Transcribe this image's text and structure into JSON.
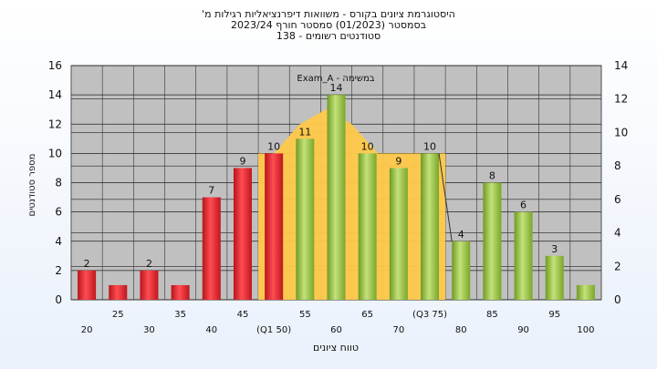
{
  "chart_data": {
    "type": "bar",
    "title_lines": [
      "היסטוגרמת ציונים בקורס - משוואות דיפרנציאליות רגילות מ'",
      "בסמסטר  (01/2023)  סמסטר חורף  2023/24",
      "סטודנטים רשומים - 138"
    ],
    "ylabel": "מספר סטודנטים",
    "xlabel": "טווח ציונים",
    "series_label": "Exam_A - במשימה",
    "categories": [
      "20",
      "25",
      "30",
      "35",
      "40",
      "45",
      "(Q1 50)",
      "55",
      "60",
      "65",
      "70",
      "(Q3 75)",
      "80",
      "85",
      "90",
      "95",
      "100"
    ],
    "values": [
      2,
      1,
      2,
      1,
      7,
      9,
      10,
      11,
      14,
      10,
      9,
      10,
      4,
      8,
      6,
      3,
      1
    ],
    "bar_color_groups": [
      "red",
      "red",
      "red",
      "red",
      "red",
      "red",
      "red",
      "green",
      "green",
      "green",
      "green",
      "green",
      "green",
      "green",
      "green",
      "green",
      "green"
    ],
    "data_labels": [
      "2",
      "",
      "2",
      "",
      "7",
      "9",
      "10",
      "11",
      "14",
      "10",
      "9",
      "10",
      "4",
      "8",
      "6",
      "3",
      ""
    ],
    "ylim": [
      0,
      16
    ],
    "yticks": [
      0,
      2,
      4,
      6,
      8,
      10,
      12,
      14,
      16
    ],
    "y2lim": [
      0,
      14
    ],
    "y2ticks": [
      0,
      2,
      4,
      6,
      8,
      10,
      12,
      14
    ],
    "interquartile_band": {
      "from_category": "(Q1 50)",
      "to_category": "(Q3 75)",
      "outline_values": [
        10,
        12,
        13,
        12,
        10,
        10,
        10
      ]
    },
    "grid": true,
    "colors": {
      "red_bar": "#e8202a",
      "green_bar": "#8fbf3a",
      "band": "#ffc94a",
      "plot_bg": "#c0c0c0"
    }
  }
}
